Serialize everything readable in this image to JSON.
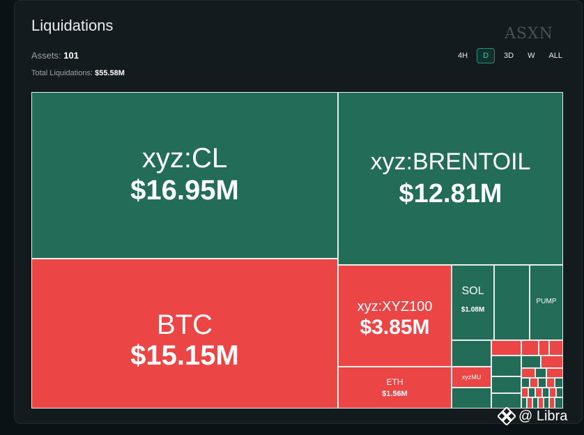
{
  "header": {
    "title": "Liquidations",
    "watermark": "ASXN",
    "assets_label": "Assets:",
    "assets_value": "101",
    "total_label": "Total Liquidations:",
    "total_value": "$55.58M"
  },
  "tabs": [
    {
      "label": "4H",
      "active": false
    },
    {
      "label": "D",
      "active": true
    },
    {
      "label": "3D",
      "active": false
    },
    {
      "label": "W",
      "active": false
    },
    {
      "label": "ALL",
      "active": false
    }
  ],
  "colors": {
    "green": "#236c58",
    "red": "#eb4545"
  },
  "footer": {
    "brand": "@ Libra"
  },
  "chart_data": {
    "type": "treemap",
    "title": "Liquidations",
    "total": "$55.58M",
    "items": [
      {
        "name": "xyz:CL",
        "value_label": "$16.95M",
        "value": 16.95,
        "color": "green"
      },
      {
        "name": "BTC",
        "value_label": "$15.15M",
        "value": 15.15,
        "color": "red"
      },
      {
        "name": "xyz:BRENTOIL",
        "value_label": "$12.81M",
        "value": 12.81,
        "color": "green"
      },
      {
        "name": "xyz:XYZ100",
        "value_label": "$3.85M",
        "value": 3.85,
        "color": "red"
      },
      {
        "name": "ETH",
        "value_label": "$1.56M",
        "value": 1.56,
        "color": "red"
      },
      {
        "name": "SOL",
        "value_label": "$1.08M",
        "value": 1.08,
        "color": "green"
      },
      {
        "name": "PUMP",
        "value_label": "",
        "color": "green"
      },
      {
        "name": "xyzMU",
        "value_label": "",
        "color": "red"
      }
    ]
  }
}
